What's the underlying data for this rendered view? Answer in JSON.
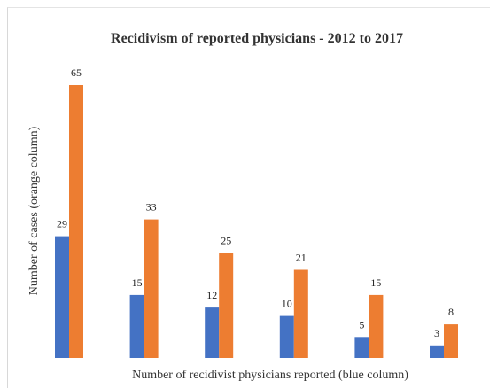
{
  "chart_data": {
    "type": "bar",
    "title": "Recidivism of reported physicians - 2012 to 2017",
    "xlabel": "Number of recidivist physicians reported (blue column)",
    "ylabel": "Number of cases (orange column)",
    "categories": [
      "",
      "",
      "",
      "",
      "",
      ""
    ],
    "series": [
      {
        "values": [
          29,
          15,
          12,
          10,
          5,
          3
        ],
        "color": "#4472c4"
      },
      {
        "values": [
          65,
          33,
          25,
          21,
          15,
          8
        ],
        "color": "#ed7d31"
      }
    ],
    "ylim": [
      0,
      65
    ],
    "grid": false,
    "legend": "none",
    "data_labels": true
  }
}
